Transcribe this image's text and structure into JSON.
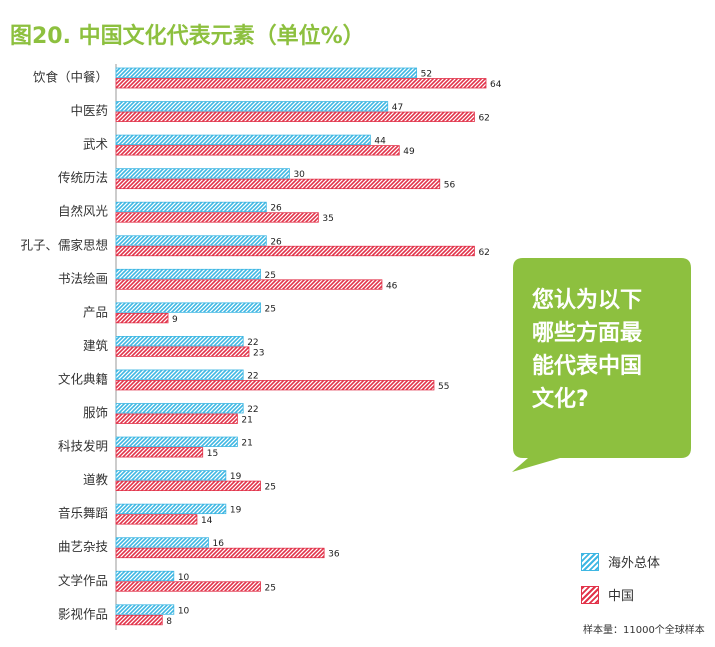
{
  "title": "图20. 中国文化代表元素（单位%）",
  "callout": {
    "lines": [
      "您认为以下",
      "哪些方面最",
      "能代表中国",
      "文化?"
    ],
    "color": "#8dc03f"
  },
  "sample_note": "样本量：11000个全球样本",
  "colors": {
    "overseas": "#3fb7e3",
    "china": "#e2334a"
  },
  "chart_data": {
    "type": "bar",
    "orientation": "horizontal",
    "title": "图20. 中国文化代表元素（单位%）",
    "xlim": [
      0,
      75
    ],
    "grid": false,
    "legend": "bottom-right",
    "categories": [
      "饮食（中餐）",
      "中医药",
      "武术",
      "传统历法",
      "自然风光",
      "孔子、儒家思想",
      "书法绘画",
      "产品",
      "建筑",
      "文化典籍",
      "服饰",
      "科技发明",
      "道教",
      "音乐舞蹈",
      "曲艺杂技",
      "文学作品",
      "影视作品"
    ],
    "series": [
      {
        "name": "海外总体",
        "values": [
          52,
          47,
          44,
          30,
          26,
          26,
          25,
          25,
          22,
          22,
          22,
          21,
          19,
          19,
          16,
          10,
          10
        ]
      },
      {
        "name": "中国",
        "values": [
          64,
          62,
          49,
          56,
          35,
          62,
          46,
          9,
          23,
          55,
          21,
          15,
          25,
          14,
          36,
          25,
          8
        ]
      }
    ]
  }
}
